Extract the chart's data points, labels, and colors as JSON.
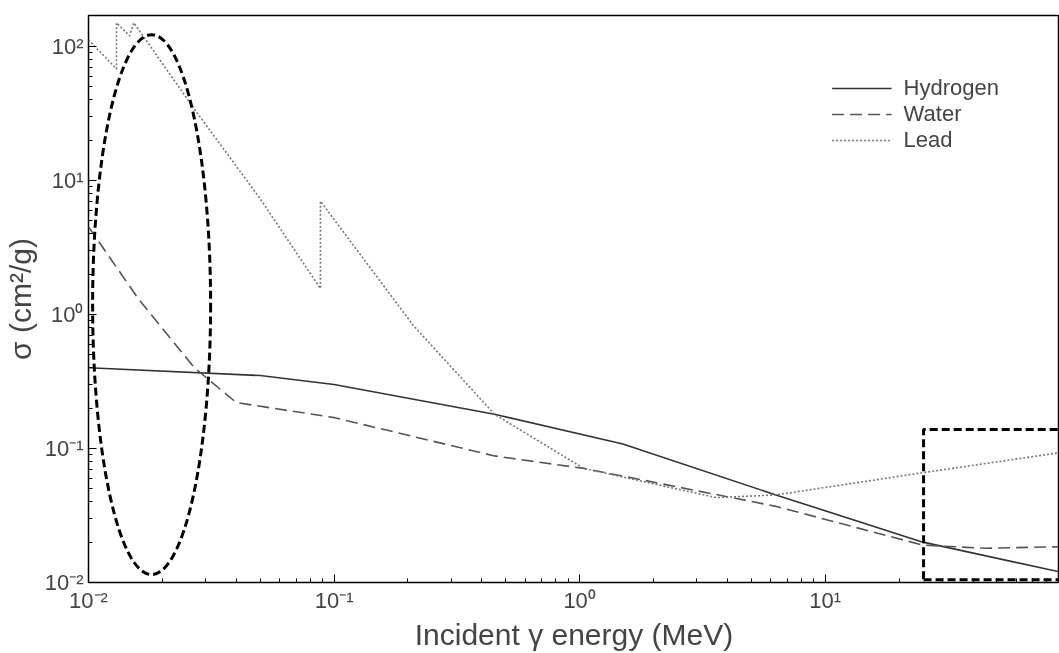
{
  "chart_data": {
    "type": "line",
    "xlabel": "Incident γ energy (MeV)",
    "ylabel": "σ (cm²/g)",
    "log": "xy",
    "legend": "top right",
    "xlim": [
      0.01,
      90
    ],
    "ylim": [
      0.01,
      170
    ],
    "xticks": [
      {
        "value": 0.01,
        "label": "10⁻²"
      },
      {
        "value": 0.1,
        "label": "10⁻¹"
      },
      {
        "value": 1,
        "label": "10⁰"
      },
      {
        "value": 10,
        "label": "10¹"
      }
    ],
    "yticks": [
      {
        "value": 0.01,
        "label": "10⁻²"
      },
      {
        "value": 0.1,
        "label": "10⁻¹"
      },
      {
        "value": 1,
        "label": "10⁰"
      },
      {
        "value": 10,
        "label": "10¹"
      },
      {
        "value": 100,
        "label": "10²"
      }
    ],
    "series": [
      {
        "name": "Hydrogen",
        "color": "#333333",
        "line_style": "solid",
        "x": [
          0.01,
          0.05,
          0.1,
          0.45,
          1.5,
          6.3,
          25,
          90
        ],
        "values": [
          0.4,
          0.35,
          0.3,
          0.18,
          0.108,
          0.045,
          0.02,
          0.012
        ]
      },
      {
        "name": "Water",
        "color": "#555555",
        "line_style": "dashed",
        "x": [
          0.01,
          0.016,
          0.027,
          0.04,
          0.1,
          0.45,
          1.04,
          6.3,
          25,
          45,
          90
        ],
        "values": [
          4.5,
          1.3,
          0.4,
          0.22,
          0.17,
          0.088,
          0.071,
          0.037,
          0.019,
          0.018,
          0.0185
        ]
      },
      {
        "name": "Lead",
        "color": "#777777",
        "line_style": "dotted",
        "x": [
          0.01,
          0.013,
          0.013,
          0.0147,
          0.0153,
          0.027,
          0.05,
          0.088,
          0.088,
          0.21,
          0.45,
          1.04,
          3.6,
          6.3,
          25,
          90
        ],
        "values": [
          112,
          68,
          150,
          120,
          150,
          34,
          7.3,
          1.56,
          7.0,
          0.83,
          0.18,
          0.071,
          0.043,
          0.045,
          0.066,
          0.093
        ]
      }
    ]
  }
}
